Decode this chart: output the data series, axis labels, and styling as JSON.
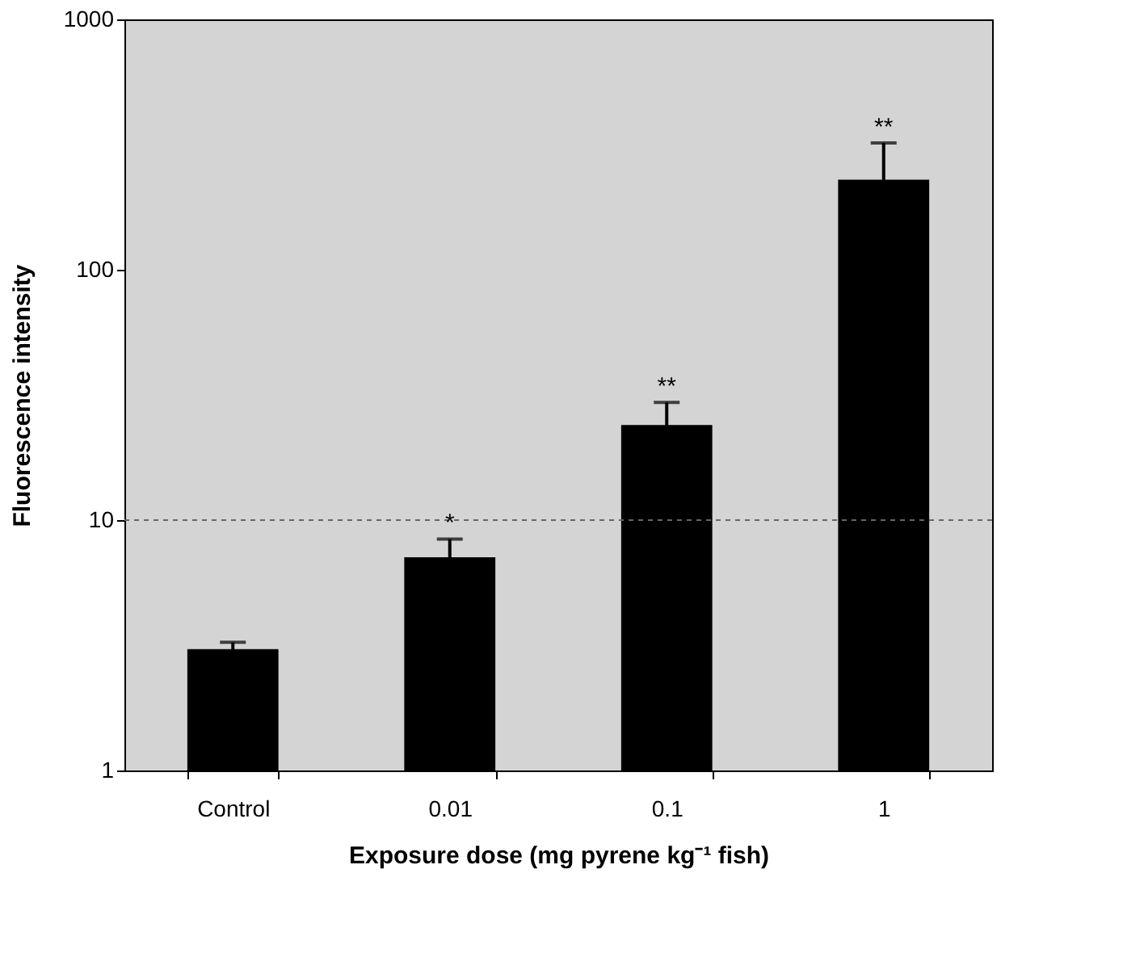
{
  "chart_data": {
    "type": "bar",
    "xlabel": "Exposure dose (mg pyrene kg⁻¹ fish)",
    "ylabel": "Fluorescence intensity",
    "categories": [
      "Control",
      "0.01",
      "0.1",
      "1"
    ],
    "values": [
      3.05,
      7.1,
      24,
      229
    ],
    "color": "#000000",
    "errors": [
      0.2,
      1.3,
      5.5,
      92
    ],
    "log": "y",
    "ylim": [
      1,
      1000
    ],
    "yticks": [
      1,
      10,
      100,
      1000
    ],
    "ref_lines": [
      {
        "axis": "y",
        "value": 10,
        "line_style": "dashed",
        "color": "#666666"
      }
    ],
    "annotations": [
      {
        "text": "*",
        "x": "0.01",
        "y": 8.4
      },
      {
        "text": "**",
        "x": "0.1",
        "y": 29.5
      },
      {
        "text": "**",
        "x": "1",
        "y": 321
      }
    ]
  }
}
